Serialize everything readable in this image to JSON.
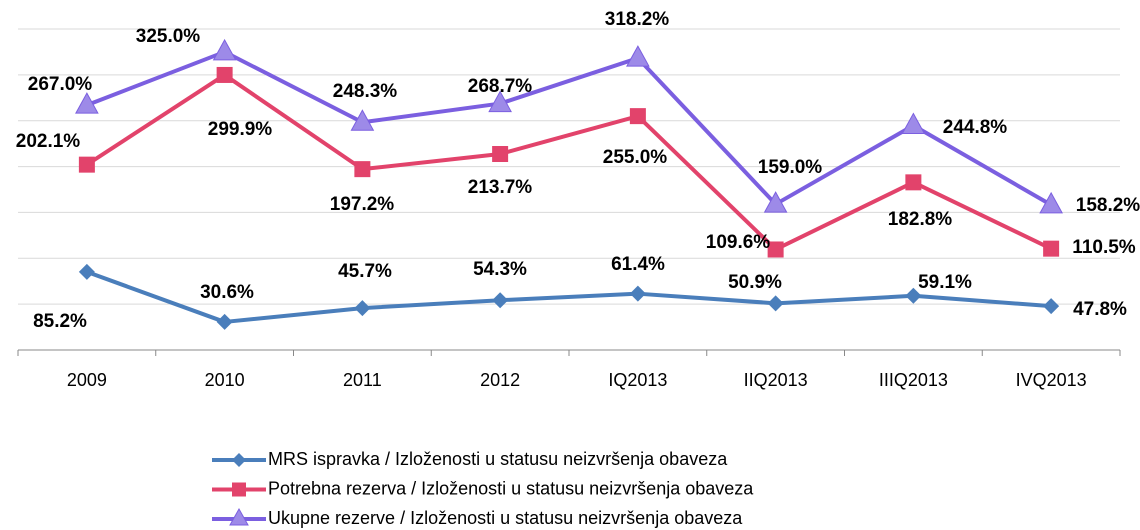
{
  "chart_data": {
    "type": "line",
    "categories": [
      "2009",
      "2010",
      "2011",
      "2012",
      "IQ2013",
      "IIQ2013",
      "IIIQ2013",
      "IVQ2013"
    ],
    "series": [
      {
        "name": "MRS ispravka / Izloženosti u statusu neizvršenja obaveza",
        "color": "#4a7ebb",
        "marker": "diamond",
        "values": [
          85.2,
          30.6,
          45.7,
          54.3,
          61.4,
          50.9,
          59.1,
          47.8
        ],
        "value_labels": [
          "85.2%",
          "30.6%",
          "45.7%",
          "54.3%",
          "61.4%",
          "50.9%",
          "59.1%",
          "47.8%"
        ]
      },
      {
        "name": "Potrebna rezerva / Izloženosti u statusu neizvršenja obaveza",
        "color": "#e2436b",
        "marker": "square",
        "values": [
          202.1,
          299.9,
          197.2,
          213.7,
          255.0,
          109.6,
          182.8,
          110.5
        ],
        "value_labels": [
          "202.1%",
          "299.9%",
          "197.2%",
          "213.7%",
          "255.0%",
          "109.6%",
          "182.8%",
          "110.5%"
        ]
      },
      {
        "name": "Ukupne rezerve / Izloženosti u statusu neizvršenja obaveza",
        "color": "#7b5fe0",
        "marker": "triangle",
        "values": [
          267.0,
          325.0,
          248.3,
          268.7,
          318.2,
          159.0,
          244.8,
          158.2
        ],
        "value_labels": [
          "267.0%",
          "325.0%",
          "248.3%",
          "268.7%",
          "318.2%",
          "159.0%",
          "244.8%",
          "158.2%"
        ]
      }
    ],
    "ylim": [
      0,
      350
    ],
    "yticks": [
      0,
      50,
      100,
      150,
      200,
      250,
      300,
      350
    ],
    "grid": true,
    "legend": "bottom"
  }
}
